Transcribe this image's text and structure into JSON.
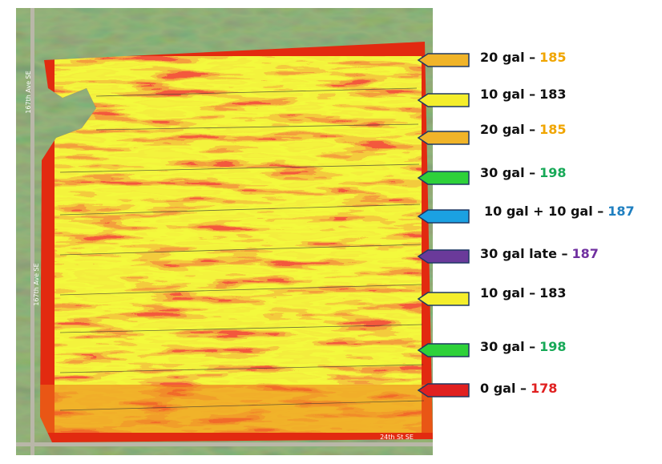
{
  "roads": {
    "west_upper": "167th Ave SE",
    "west_lower": "167th Ave SE",
    "south": "24th St SE"
  },
  "strips": [
    {
      "treatment": "20 gal –",
      "yield": 185,
      "arrow_color": "#f0b429",
      "yield_color": "#f0a500"
    },
    {
      "treatment": "10 gal –",
      "yield": 183,
      "arrow_color": "#f4ee2c",
      "yield_color": "#111111"
    },
    {
      "treatment": "20 gal –",
      "yield": 185,
      "arrow_color": "#f0b429",
      "yield_color": "#f0a500"
    },
    {
      "treatment": "30 gal –",
      "yield": 198,
      "arrow_color": "#2ed13a",
      "yield_color": "#17a957"
    },
    {
      "treatment": "10 gal + 10 gal –",
      "yield": 187,
      "arrow_color": "#1ba1e2",
      "yield_color": "#1f7fc0"
    },
    {
      "treatment": "30 gal late –",
      "yield": 187,
      "arrow_color": "#6a3a9a",
      "yield_color": "#7030a0"
    },
    {
      "treatment": "10 gal –",
      "yield": 183,
      "arrow_color": "#f4ee2c",
      "yield_color": "#111111"
    },
    {
      "treatment": "30 gal –",
      "yield": 198,
      "arrow_color": "#2ed13a",
      "yield_color": "#17a957"
    },
    {
      "treatment": "0 gal –",
      "yield": 178,
      "arrow_color": "#e02020",
      "yield_color": "#e02020"
    }
  ]
}
